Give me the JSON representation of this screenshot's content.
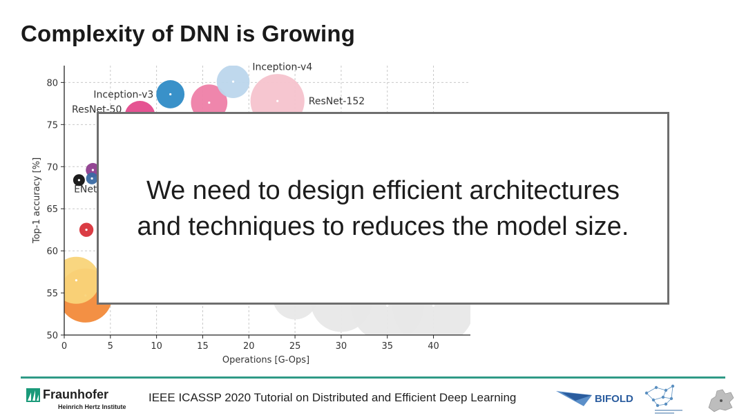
{
  "slide": {
    "title": "Complexity of DNN is Growing",
    "overlay_lines": [
      "We need to design efficient architectures",
      "and techniques to reduces the model size."
    ]
  },
  "footer": {
    "text": "IEEE ICASSP 2020 Tutorial on Distributed and Efficient Deep Learning",
    "fraunhofer_name": "Fraunhofer",
    "fraunhofer_sub": "Heinrich Hertz Institute",
    "bifold_label": "BIFOLD"
  },
  "colors": {
    "accent_rule": "#2f9a86",
    "bifold_blue": "#2a5c9e"
  },
  "chart_data": {
    "type": "scatter",
    "xlabel": "Operations [G-Ops]",
    "ylabel": "Top-1 accuracy [%]",
    "xlim": [
      0,
      44
    ],
    "ylim": [
      50,
      82
    ],
    "xticks": [
      0,
      5,
      10,
      15,
      20,
      25,
      30,
      35,
      40
    ],
    "yticks": [
      50,
      55,
      60,
      65,
      70,
      75,
      80
    ],
    "grid": true,
    "points": [
      {
        "label": "Inception-v4",
        "x": 18.3,
        "y": 80.1,
        "size": 2.8,
        "color": "#bcd6ec"
      },
      {
        "label": "Inception-v3",
        "x": 11.5,
        "y": 78.6,
        "size": 2.4,
        "color": "#2e8bc6"
      },
      {
        "label": "",
        "x": 15.7,
        "y": 77.6,
        "size": 3.1,
        "color": "#ee7fa8"
      },
      {
        "label": "ResNet-152",
        "x": 23.1,
        "y": 77.8,
        "size": 4.6,
        "color": "#f6c3cd"
      },
      {
        "label": "ResNet-50",
        "x": 8.2,
        "y": 76.0,
        "size": 2.6,
        "color": "#e44a8c"
      },
      {
        "label": "",
        "x": 3.1,
        "y": 69.6,
        "size": 1.2,
        "color": "#8e3d8e"
      },
      {
        "label": "",
        "x": 1.6,
        "y": 68.4,
        "size": 1.0,
        "color": "#111111"
      },
      {
        "label": "ENet",
        "x": 3.0,
        "y": 68.6,
        "size": 1.0,
        "color": "#3a6aa3"
      },
      {
        "label": "",
        "x": 2.4,
        "y": 62.5,
        "size": 1.2,
        "color": "#d8323a"
      },
      {
        "label": "",
        "x": 1.3,
        "y": 56.5,
        "size": 4.0,
        "color": "#f9d479"
      },
      {
        "label": "",
        "x": 2.3,
        "y": 54.7,
        "size": 4.6,
        "color": "#f28a3a"
      },
      {
        "label": "",
        "x": 25.0,
        "y": 54.5,
        "size": 3.8,
        "color": "#e8e8e8"
      },
      {
        "label": "",
        "x": 30.0,
        "y": 54.0,
        "size": 5.2,
        "color": "#e8e8e8"
      },
      {
        "label": "",
        "x": 35.0,
        "y": 53.5,
        "size": 6.2,
        "color": "#e8e8e8"
      },
      {
        "label": "",
        "x": 40.0,
        "y": 53.5,
        "size": 7.0,
        "color": "#e8e8e8"
      }
    ]
  }
}
